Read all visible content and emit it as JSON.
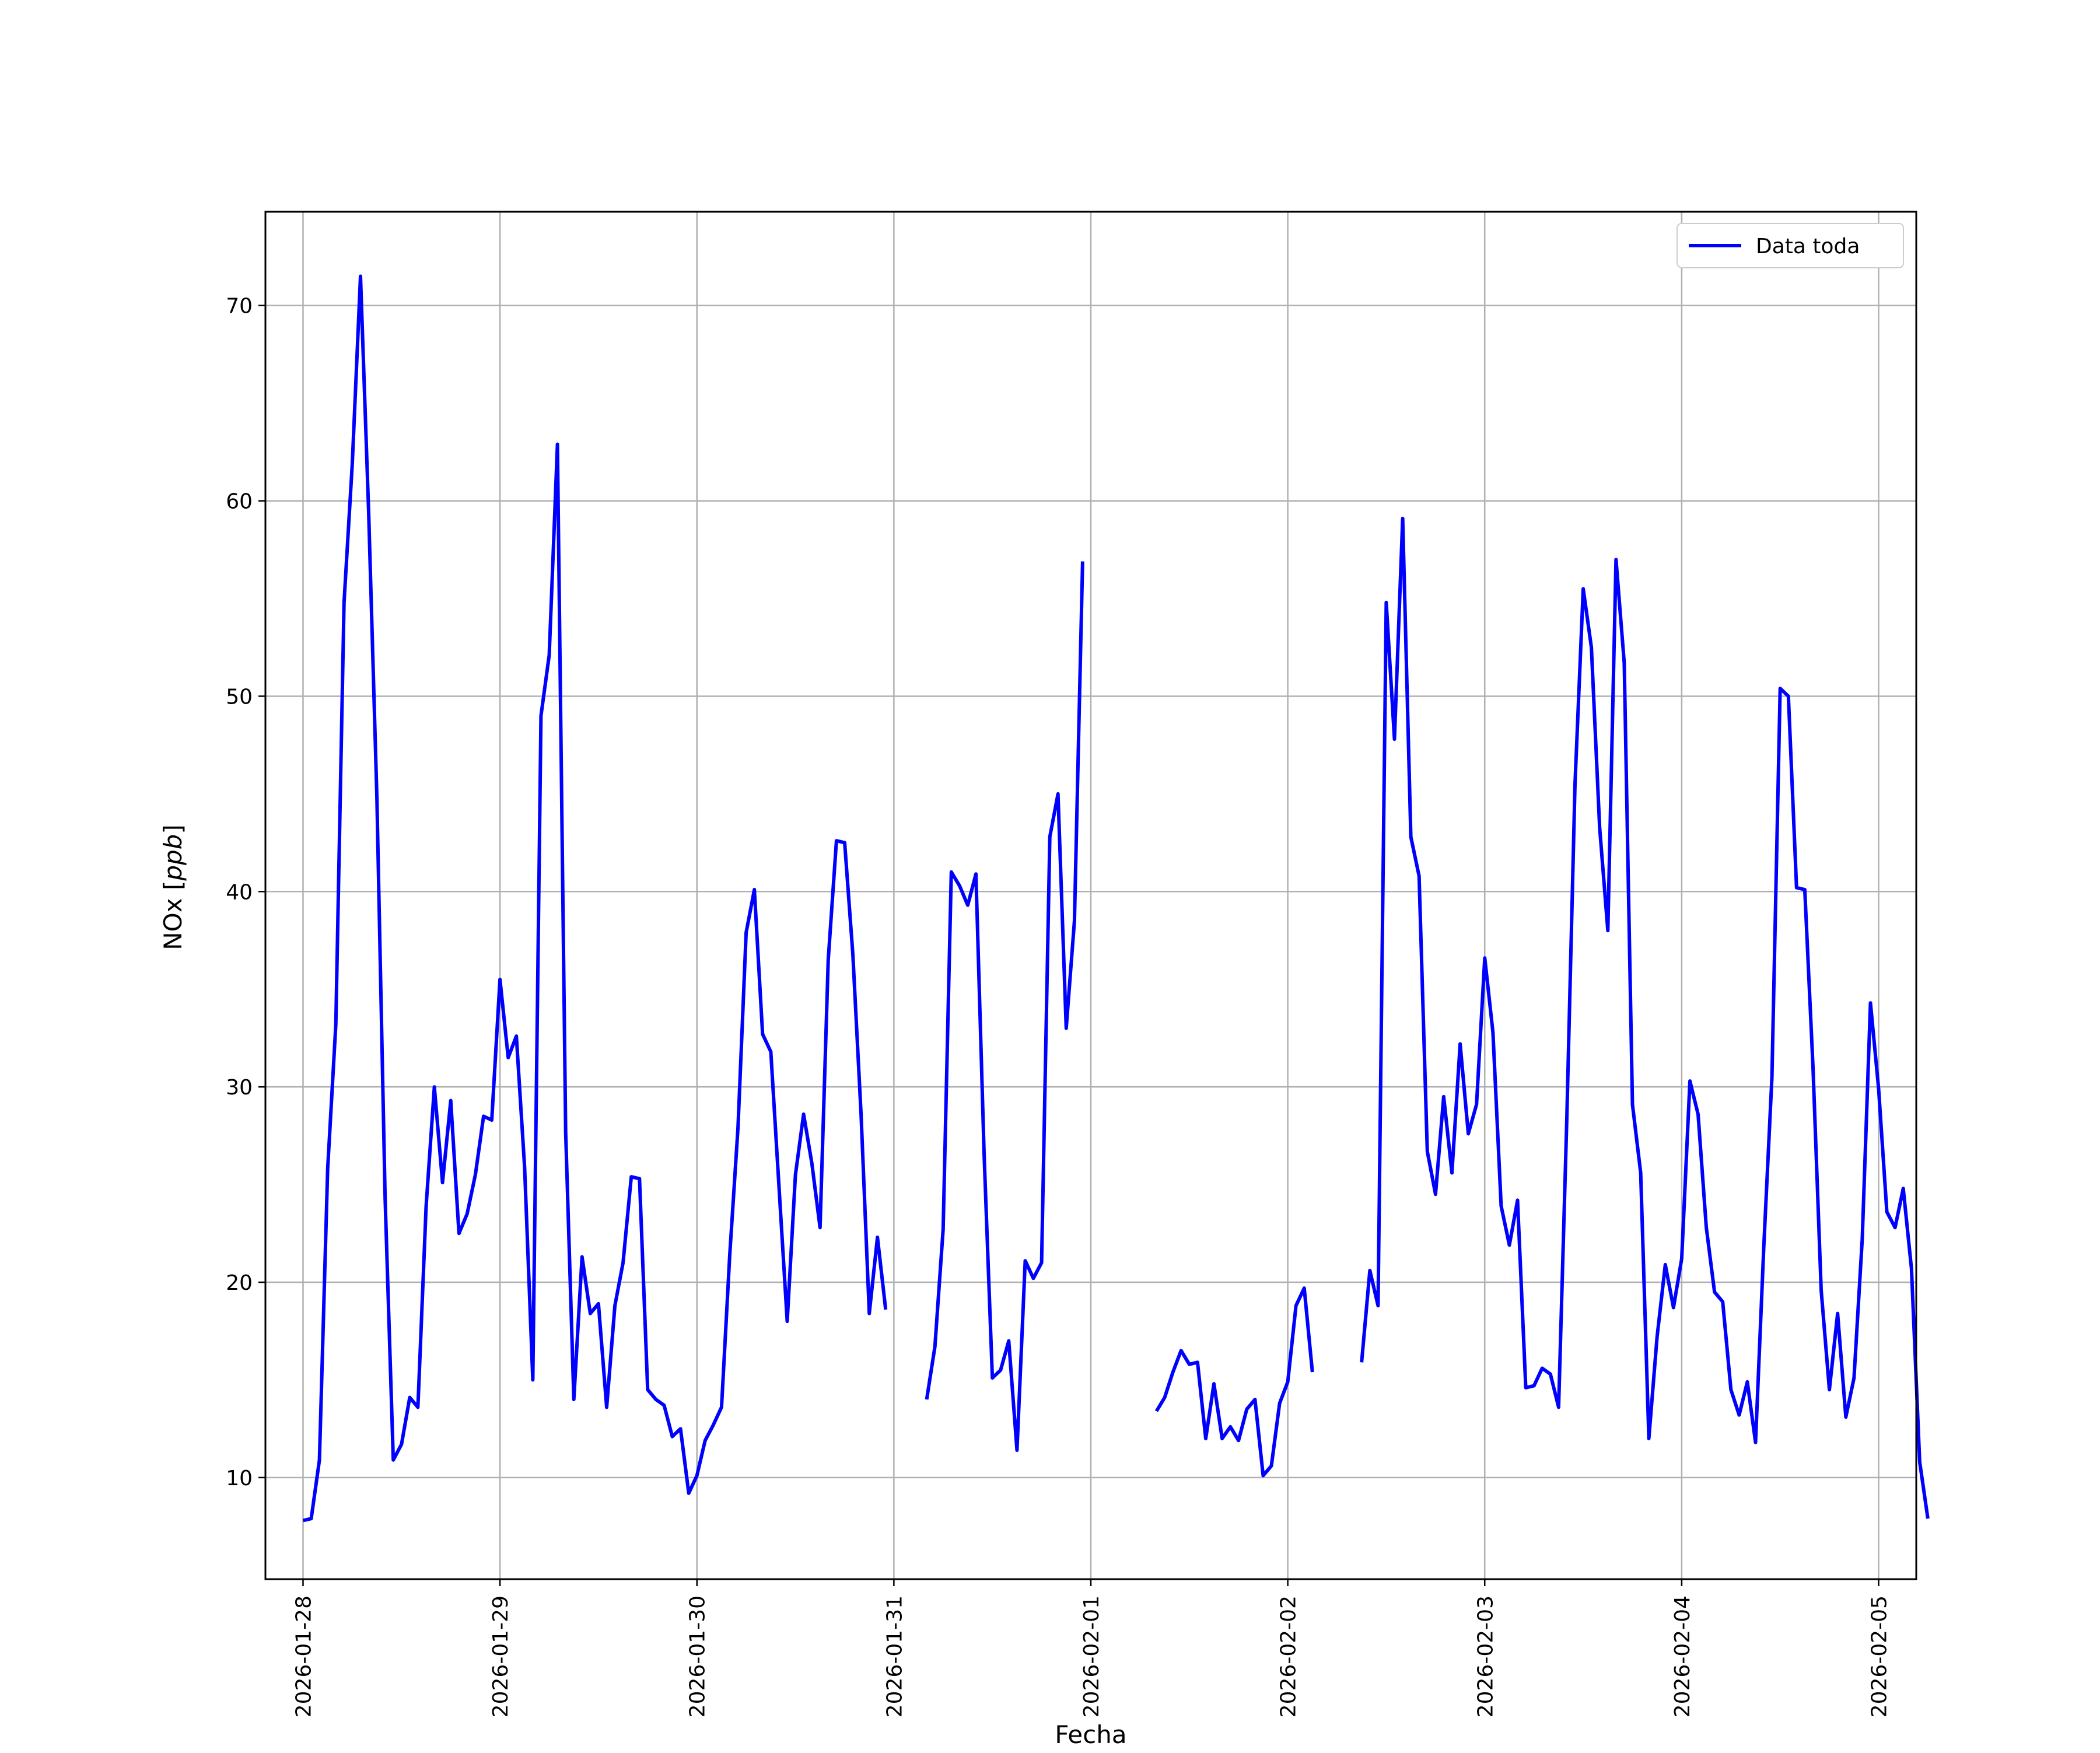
{
  "chart_data": {
    "type": "line",
    "title": "",
    "xlabel": "Fecha",
    "ylabel": "NOx [ppb]",
    "ylabel_var": "ppb",
    "ylabel_prefix": "NOx [",
    "ylabel_suffix": "]",
    "xlim": [
      "2026-01-27 19:25",
      "2026-02-05 04:35"
    ],
    "ylim": [
      4.8,
      74.8
    ],
    "y_ticks": [
      10,
      20,
      30,
      40,
      50,
      60,
      70
    ],
    "x_ticks": [
      "2026-01-28",
      "2026-01-29",
      "2026-01-30",
      "2026-01-31",
      "2026-02-01",
      "2026-02-02",
      "2026-02-03",
      "2026-02-04",
      "2026-02-05"
    ],
    "grid": true,
    "legend": {
      "position": "top-right",
      "entries": [
        "Data toda"
      ]
    },
    "colors": {
      "series": "#0000ff",
      "grid": "#b0b0b0",
      "axes": "#000000"
    },
    "series": [
      {
        "name": "Data toda",
        "start": "2026-01-28 00:00",
        "step_hours": 1,
        "values": [
          7.8,
          7.9,
          10.9,
          25.8,
          33.2,
          54.8,
          61.9,
          71.5,
          59.4,
          44.8,
          24.3,
          10.9,
          11.7,
          14.1,
          13.6,
          23.9,
          30.0,
          25.1,
          29.3,
          22.5,
          23.5,
          25.5,
          28.5,
          28.3,
          35.5,
          31.5,
          32.6,
          25.9,
          15.0,
          49.0,
          52.1,
          62.9,
          27.7,
          14.0,
          21.3,
          18.4,
          18.9,
          13.6,
          18.8,
          21.0,
          25.4,
          25.3,
          14.5,
          14.0,
          13.7,
          12.1,
          12.5,
          9.2,
          10.1,
          11.9,
          12.7,
          13.6,
          21.4,
          27.9,
          37.9,
          40.1,
          32.7,
          31.8,
          24.9,
          18.0,
          25.5,
          28.6,
          26.1,
          22.8,
          36.5,
          42.6,
          42.5,
          36.8,
          28.6,
          18.4,
          22.3,
          18.6,
          null,
          null,
          null,
          null,
          14.0,
          16.7,
          22.7,
          41.0,
          40.3,
          39.3,
          40.9,
          26.5,
          15.1,
          15.5,
          17.0,
          11.4,
          21.1,
          20.2,
          21.0,
          42.8,
          45.0,
          33.0,
          38.5,
          56.9,
          null,
          null,
          null,
          null,
          null,
          null,
          null,
          null,
          13.4,
          14.1,
          15.4,
          16.5,
          15.8,
          15.9,
          12.0,
          14.8,
          12.0,
          12.6,
          11.9,
          13.5,
          14.0,
          10.1,
          10.6,
          13.8,
          14.9,
          18.8,
          19.7,
          15.4,
          null,
          null,
          null,
          null,
          null,
          15.9,
          20.6,
          18.8,
          54.8,
          47.8,
          59.1,
          42.8,
          40.8,
          26.7,
          24.5,
          29.5,
          25.6,
          32.2,
          27.6,
          29.1,
          36.6,
          32.8,
          23.9,
          21.9,
          24.2,
          14.6,
          14.7,
          15.6,
          15.3,
          13.6,
          28.3,
          45.5,
          55.5,
          52.5,
          43.3,
          38.0,
          57.0,
          51.7,
          29.1,
          25.6,
          12.0,
          17.2,
          20.9,
          18.7,
          21.2,
          30.3,
          28.6,
          22.8,
          19.5,
          19.0,
          14.5,
          13.2,
          14.9,
          11.8,
          21.8,
          30.5,
          50.4,
          50.0,
          40.2,
          40.1,
          31.0,
          19.6,
          14.5,
          18.4,
          13.1,
          15.1,
          22.2,
          34.3,
          29.9,
          23.6,
          22.8,
          24.8,
          20.7,
          10.8,
          7.9
        ]
      }
    ]
  }
}
